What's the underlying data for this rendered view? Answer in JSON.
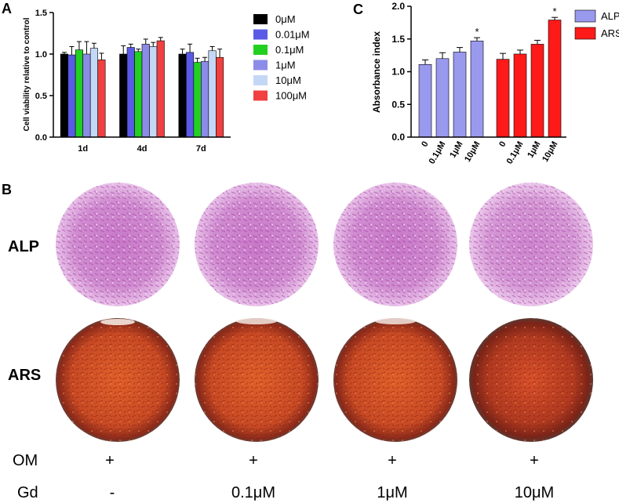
{
  "panel_labels": {
    "a": "A",
    "b": "B",
    "c": "C"
  },
  "colors": {
    "c0": "#000000",
    "c001": "#5a5ae6",
    "c01": "#22d022",
    "c1": "#8c8ce8",
    "c10": "#c4d8f6",
    "c100": "#f04040",
    "alp": "#9999ee",
    "ars": "#ff1a1a",
    "alp_stain": "#c45cc4",
    "ars_stain": "#c84a24"
  },
  "chart_data": [
    {
      "id": "A",
      "type": "bar",
      "title": "",
      "xlabel": "",
      "ylabel": "Cell viability relative to control",
      "ylim": [
        0,
        1.5
      ],
      "yticks": [
        "0.0",
        "0.5",
        "1.0",
        "1.5"
      ],
      "categories": [
        "1d",
        "4d",
        "7d"
      ],
      "legend_position": "right",
      "series": [
        {
          "name": "0μM",
          "color_key": "c0",
          "values": [
            1.0,
            1.0,
            1.0
          ],
          "errors": [
            0.02,
            0.1,
            0.06
          ]
        },
        {
          "name": "0.01μM",
          "color_key": "c001",
          "values": [
            0.99,
            1.08,
            1.02
          ],
          "errors": [
            0.1,
            0.04,
            0.1
          ]
        },
        {
          "name": "0.1μM",
          "color_key": "c01",
          "values": [
            1.05,
            1.03,
            0.9
          ],
          "errors": [
            0.1,
            0.03,
            0.05
          ]
        },
        {
          "name": "1μM",
          "color_key": "c1",
          "values": [
            1.0,
            1.12,
            0.91
          ],
          "errors": [
            0.15,
            0.06,
            0.05
          ]
        },
        {
          "name": "10μM",
          "color_key": "c10",
          "values": [
            1.07,
            1.09,
            1.04
          ],
          "errors": [
            0.06,
            0.05,
            0.05
          ]
        },
        {
          "name": "100μM",
          "color_key": "c100",
          "values": [
            0.93,
            1.16,
            0.96
          ],
          "errors": [
            0.08,
            0.04,
            0.1
          ]
        }
      ]
    },
    {
      "id": "C",
      "type": "bar",
      "title": "",
      "xlabel": "",
      "ylabel": "Absorbance index",
      "ylim": [
        0,
        2.0
      ],
      "yticks": [
        "0.0",
        "0.5",
        "1.0",
        "1.5",
        "2.0"
      ],
      "legend_position": "right",
      "groups": [
        {
          "name": "ALP",
          "color_key": "alp",
          "categories": [
            "0",
            "0.1μM",
            "1μM",
            "10μM"
          ],
          "values": [
            1.11,
            1.2,
            1.3,
            1.47
          ],
          "errors": [
            0.07,
            0.09,
            0.07,
            0.05
          ],
          "marks": [
            "",
            "",
            "",
            "*"
          ]
        },
        {
          "name": "ARS",
          "color_key": "ars",
          "categories": [
            "0",
            "0.1μM",
            "1μM",
            "10μM"
          ],
          "values": [
            1.19,
            1.27,
            1.42,
            1.79
          ],
          "errors": [
            0.09,
            0.06,
            0.06,
            0.04
          ],
          "marks": [
            "",
            "",
            "",
            "*"
          ]
        }
      ]
    }
  ],
  "panel_b": {
    "row_labels": [
      "ALP",
      "ARS"
    ],
    "om_label": "OM",
    "gd_label": "Gd",
    "om_values": [
      "+",
      "+",
      "+",
      "+"
    ],
    "gd_values": [
      "-",
      "0.1μM",
      "1μM",
      "10μM"
    ]
  }
}
